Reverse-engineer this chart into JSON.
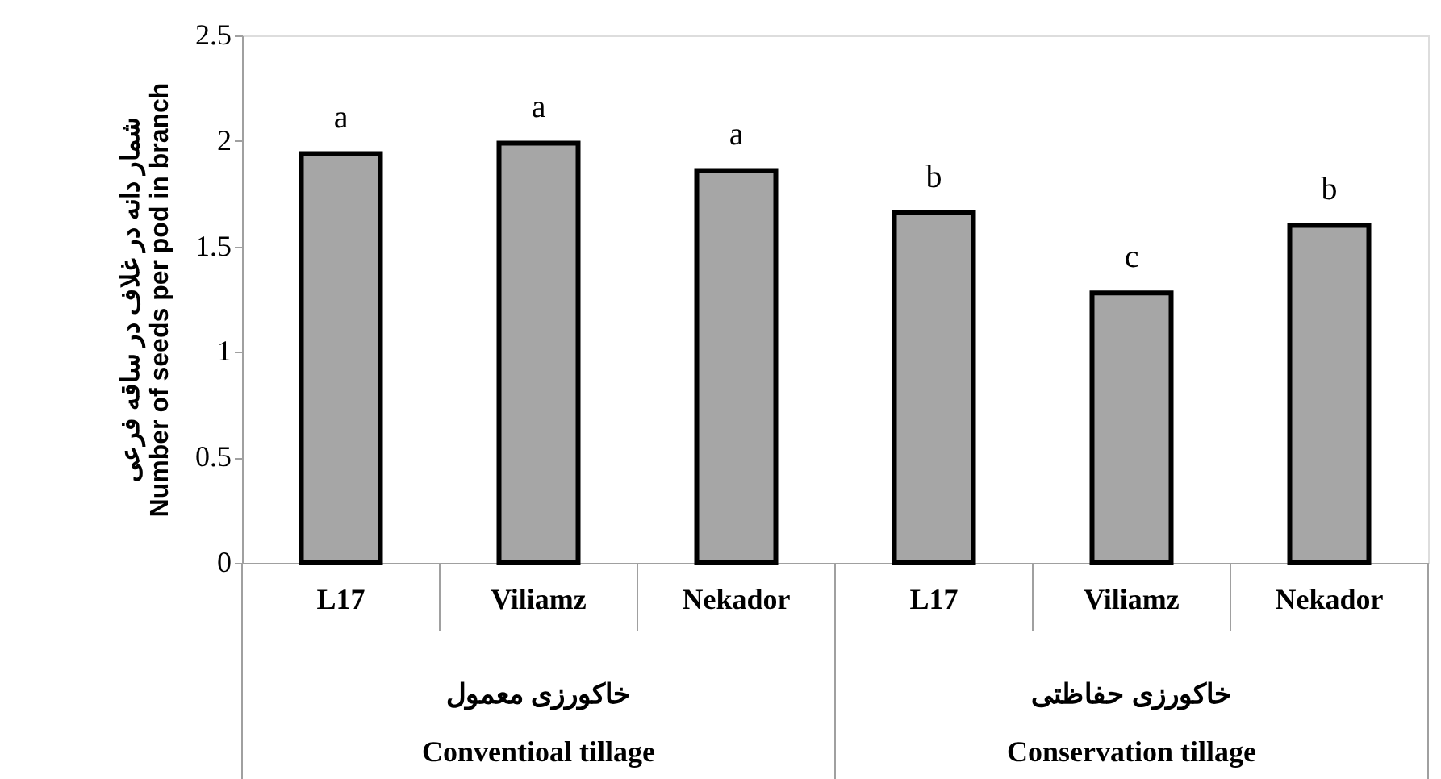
{
  "chart_data": {
    "type": "bar",
    "ylabel": "شمار دانه در غلاف در ساقه فرعی\nNumber of seeds per pod in branch",
    "categories": [
      "L17",
      "Viliamz",
      "Nekador",
      "L17",
      "Viliamz",
      "Nekador"
    ],
    "values": [
      1.94,
      1.99,
      1.86,
      1.66,
      1.28,
      1.6
    ],
    "color": "#a6a6a6",
    "ylim": [
      0,
      2.5
    ],
    "yticks": [
      0,
      0.5,
      1,
      1.5,
      2,
      2.5
    ],
    "grid": false,
    "annotations": [
      "a",
      "a",
      "a",
      "b",
      "c",
      "b",
      "خاکورزی معمول",
      "Conventioal tillage",
      "خاکورزی حفاظتی",
      "Conservation tillage"
    ]
  }
}
